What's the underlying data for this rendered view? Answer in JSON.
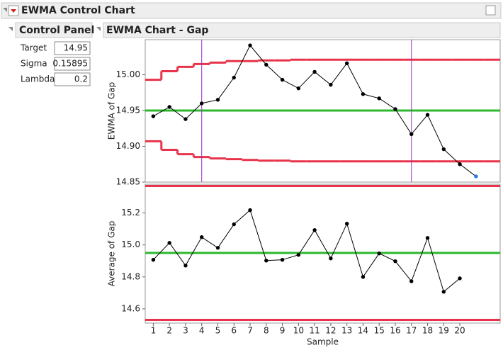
{
  "window": {
    "title": "EWMA Control Chart"
  },
  "control_panel": {
    "title": "Control Panel",
    "fields": [
      {
        "label": "Target",
        "value": 14.95
      },
      {
        "label": "Sigma",
        "value": 0.15895
      },
      {
        "label": "Lambda",
        "value": 0.2
      }
    ]
  },
  "report": {
    "title": "EWMA Chart - Gap"
  },
  "chart_data": [
    {
      "type": "line",
      "ylabel": "EWMA of Gap",
      "x": [
        1,
        2,
        3,
        4,
        5,
        6,
        7,
        8,
        9,
        10,
        11,
        12,
        13,
        14,
        15,
        16,
        17,
        18,
        19,
        20,
        21,
        22
      ],
      "xlim": [
        0.5,
        22.5
      ],
      "ylim": [
        14.85,
        15.049
      ],
      "yticks": [
        14.85,
        {
          "value": 14.9,
          "label": "14.90"
        },
        14.95,
        {
          "value": 15,
          "label": "15.00"
        }
      ],
      "series": [
        {
          "color": "#000000",
          "values": [
            14.942,
            14.955,
            14.938,
            14.96,
            14.965,
            14.996,
            15.041,
            15.014,
            14.993,
            14.981,
            15.004,
            14.986,
            15.016,
            14.973,
            14.967,
            14.952,
            14.917,
            14.944,
            14.896,
            14.875,
            14.858,
            null
          ],
          "point_colors": [
            "#000000",
            "#000000",
            "#000000",
            "#000000",
            "#000000",
            "#000000",
            "#000000",
            "#000000",
            "#000000",
            "#000000",
            "#000000",
            "#000000",
            "#000000",
            "#000000",
            "#000000",
            "#000000",
            "#000000",
            "#000000",
            "#000000",
            "#000000",
            "#2a7be4",
            null
          ]
        }
      ],
      "center": 14.95,
      "center_color": "#2db82d",
      "ucl": [
        14.993,
        15.005,
        15.011,
        15.015,
        15.017,
        15.019,
        15.019,
        15.02,
        15.02,
        15.021,
        15.021,
        15.021,
        15.021,
        15.021,
        15.021,
        15.021,
        15.021,
        15.021,
        15.021,
        15.021,
        15.021,
        15.021
      ],
      "lcl": [
        14.907,
        14.895,
        14.889,
        14.885,
        14.883,
        14.882,
        14.881,
        14.88,
        14.88,
        14.879,
        14.879,
        14.879,
        14.879,
        14.879,
        14.879,
        14.879,
        14.879,
        14.879,
        14.879,
        14.879,
        14.879,
        14.879
      ],
      "limit_color": "#e8334a",
      "vlines": [
        4,
        17
      ],
      "vline_color": "#9b30c8"
    },
    {
      "type": "line",
      "ylabel": "Average of Gap",
      "xlabel": "Sample",
      "x": [
        1,
        2,
        3,
        4,
        5,
        6,
        7,
        8,
        9,
        10,
        11,
        12,
        13,
        14,
        15,
        16,
        17,
        18,
        19,
        20
      ],
      "xlim": [
        0.5,
        22.5
      ],
      "ylim": [
        14.511,
        15.38
      ],
      "xticks": [
        1,
        2,
        3,
        4,
        5,
        6,
        7,
        8,
        9,
        10,
        11,
        12,
        13,
        14,
        15,
        16,
        17,
        18,
        19,
        20
      ],
      "yticks": [
        14.6,
        14.8,
        {
          "value": 15,
          "label": "15.0"
        },
        15.2
      ],
      "series": [
        {
          "color": "#000000",
          "values": [
            14.907,
            15.013,
            14.871,
            15.049,
            14.982,
            15.129,
            15.218,
            14.902,
            14.907,
            14.938,
            15.093,
            14.916,
            15.133,
            14.8,
            14.947,
            14.898,
            14.773,
            15.044,
            14.707,
            14.791
          ]
        }
      ],
      "center": 14.95,
      "center_color": "#2db82d",
      "ucl": 15.369,
      "lcl": 14.531,
      "limit_color": "#e8334a"
    }
  ]
}
